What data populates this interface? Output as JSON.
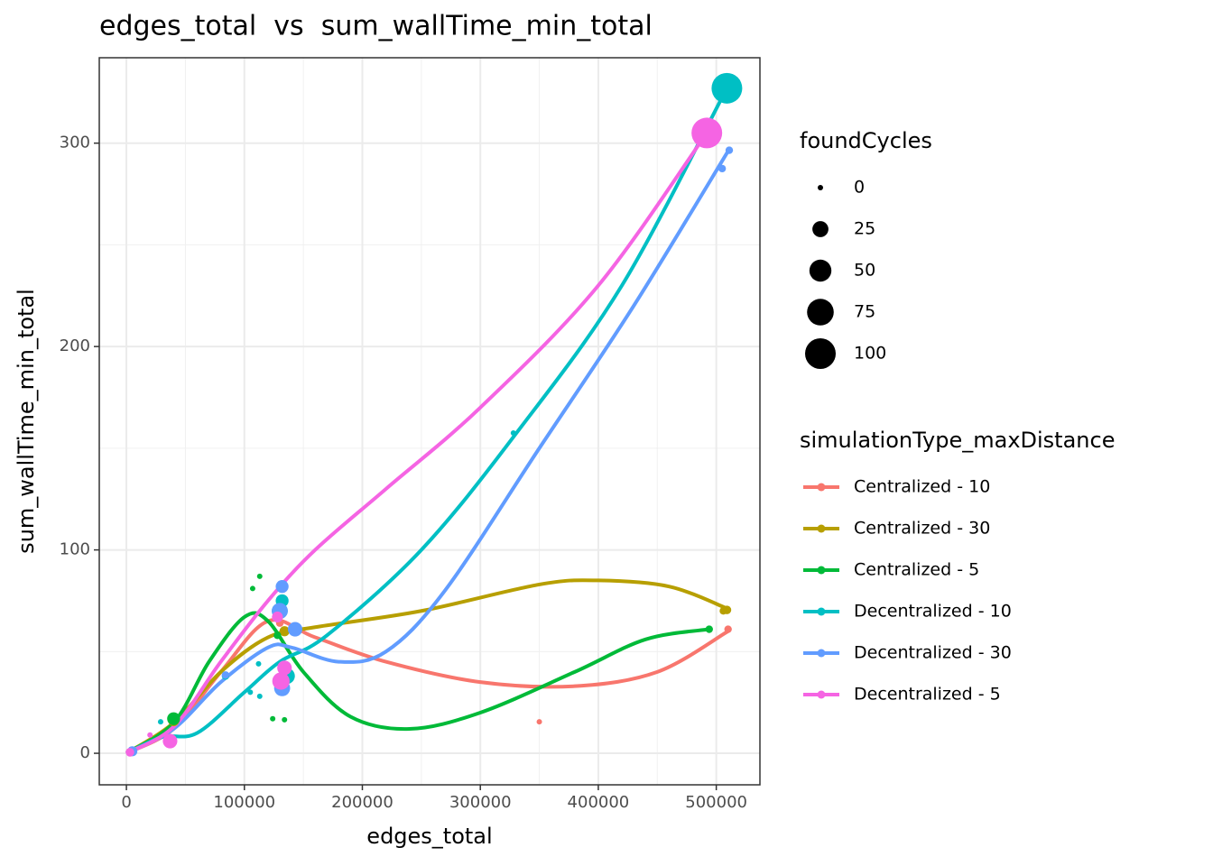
{
  "chart_data": {
    "type": "scatter",
    "title": "edges_total  vs  sum_wallTime_min_total",
    "x_label": "edges_total",
    "y_label": "sum_wallTime_min_total",
    "xlim": [
      -23000,
      537000
    ],
    "ylim": [
      -15.5,
      342
    ],
    "xticks": [
      0,
      100000,
      200000,
      300000,
      400000,
      500000
    ],
    "yticks": [
      0,
      100,
      200,
      300
    ],
    "x_minor_ticks": [
      50000,
      150000,
      250000,
      350000,
      450000
    ],
    "y_minor_ticks": [
      50,
      150,
      250
    ],
    "grid": true,
    "size_legend": {
      "title": "foundCycles",
      "values": [
        0,
        25,
        50,
        75,
        100
      ]
    },
    "color_legend_title": "simulationType_maxDistance",
    "series": [
      {
        "name": "Centralized - 10",
        "color": "#F8766D",
        "x": [
          510000,
          350000,
          130000,
          2000
        ],
        "values": [
          61,
          15.5,
          64,
          1
        ],
        "sizes": [
          3,
          0,
          3,
          0
        ],
        "trend": {
          "x": [
            0,
            40000,
            80000,
            120000,
            160000,
            220000,
            300000,
            380000,
            450000,
            510000
          ],
          "values": [
            0,
            12,
            40,
            65,
            57,
            45,
            35,
            33,
            40,
            60
          ]
        }
      },
      {
        "name": "Centralized - 30",
        "color": "#B79F00",
        "x": [
          509000,
          506000,
          134000,
          40000,
          3000
        ],
        "values": [
          70.5,
          70,
          60,
          16,
          1
        ],
        "sizes": [
          5,
          3,
          8,
          10,
          0
        ],
        "trend": {
          "x": [
            0,
            40000,
            80000,
            120000,
            160000,
            250000,
            350000,
            400000,
            460000,
            510000
          ],
          "values": [
            0,
            15,
            40,
            57,
            62,
            70,
            83,
            85,
            82,
            71
          ]
        }
      },
      {
        "name": "Centralized - 5",
        "color": "#00BA38",
        "x": [
          494000,
          113000,
          107000,
          124000,
          134000,
          128000,
          40000,
          3000
        ],
        "values": [
          61,
          87,
          81,
          17,
          16.5,
          58,
          17,
          1
        ],
        "sizes": [
          3,
          0,
          0,
          0,
          0,
          3,
          15,
          0
        ],
        "trend": {
          "x": [
            0,
            40000,
            70000,
            100000,
            120000,
            150000,
            190000,
            240000,
            300000,
            380000,
            440000,
            494000
          ],
          "values": [
            0,
            15,
            45,
            67,
            65,
            40,
            18,
            12,
            20,
            40,
            56,
            61
          ]
        }
      },
      {
        "name": "Decentralized - 10",
        "color": "#00BFC4",
        "x": [
          509000,
          328000,
          132000,
          136000,
          112000,
          105000,
          113000,
          84000,
          29000,
          4000,
          130000
        ],
        "values": [
          327,
          157.5,
          75,
          38,
          44,
          30,
          28,
          38,
          15.5,
          1,
          70
        ],
        "sizes": [
          100,
          0,
          15,
          25,
          0,
          0,
          0,
          3,
          0,
          0,
          25
        ],
        "trend": {
          "x": [
            0,
            30000,
            60000,
            100000,
            130000,
            170000,
            250000,
            330000,
            420000,
            509000
          ],
          "values": [
            0,
            8,
            10,
            30,
            45,
            58,
            100,
            157,
            230,
            327
          ]
        }
      },
      {
        "name": "Decentralized - 30",
        "color": "#619CFF",
        "x": [
          511000,
          505000,
          132000,
          130000,
          132000,
          143000,
          84000,
          5000
        ],
        "values": [
          296.5,
          287.5,
          82,
          70,
          32,
          61,
          38.5,
          1
        ],
        "sizes": [
          3,
          3,
          15,
          25,
          25,
          20,
          3,
          8
        ],
        "trend": {
          "x": [
            0,
            40000,
            80000,
            120000,
            140000,
            180000,
            220000,
            270000,
            350000,
            430000,
            511000
          ],
          "values": [
            0,
            12,
            35,
            52,
            52,
            45,
            50,
            80,
            150,
            220,
            297
          ]
        }
      },
      {
        "name": "Decentralized - 5",
        "color": "#F564E3",
        "x": [
          492000,
          131000,
          134000,
          128000,
          37000,
          20000,
          3000
        ],
        "values": [
          305,
          35.5,
          42,
          67,
          6,
          9,
          0.5
        ],
        "sizes": [
          100,
          30,
          20,
          10,
          20,
          0,
          5
        ],
        "trend": {
          "x": [
            0,
            40000,
            80000,
            120000,
            160000,
            220000,
            300000,
            400000,
            492000
          ],
          "values": [
            0,
            13,
            45,
            75,
            100,
            130,
            170,
            230,
            305
          ]
        }
      }
    ]
  }
}
